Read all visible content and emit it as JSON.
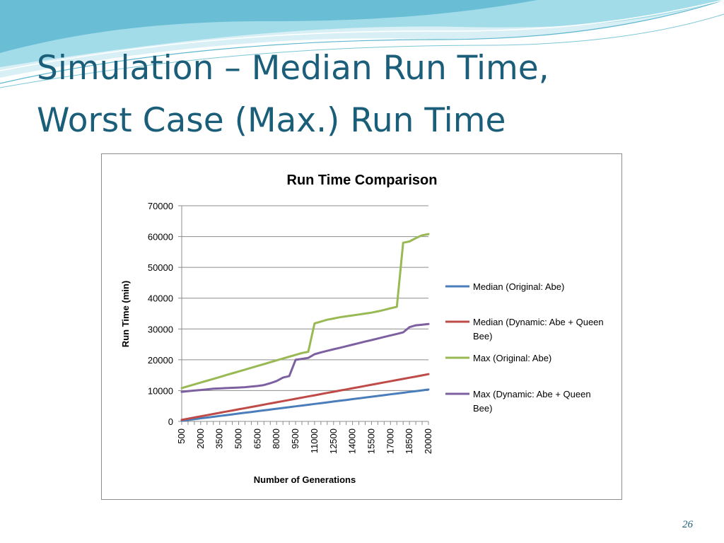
{
  "slide": {
    "title_line1": "Simulation – Median Run Time,",
    "title_line2": "Worst Case (Max.) Run Time",
    "page_number": "26"
  },
  "theme": {
    "title_color": "#1b5e79",
    "wave_light": "#bfe6ef",
    "wave_mid": "#7fd0e0",
    "wave_dark": "#3aa6c4"
  },
  "chart_data": {
    "type": "line",
    "title": "Run Time Comparison",
    "xlabel": "Number of Generations",
    "ylabel": "Run Time (min)",
    "x": [
      500,
      1000,
      1500,
      2000,
      2500,
      3000,
      3500,
      4000,
      4500,
      5000,
      5500,
      6000,
      6500,
      7000,
      7500,
      8000,
      8500,
      9000,
      9500,
      10000,
      10500,
      11000,
      11500,
      12000,
      12500,
      13000,
      13500,
      14000,
      14500,
      15000,
      15500,
      16000,
      16500,
      17000,
      17500,
      18000,
      18500,
      19000,
      19500,
      20000
    ],
    "x_tick_labels": [
      "500",
      "2000",
      "3500",
      "5000",
      "6500",
      "8000",
      "9500",
      "11000",
      "12500",
      "14000",
      "15500",
      "17000",
      "18500",
      "20000"
    ],
    "x_tick_values": [
      500,
      2000,
      3500,
      5000,
      6500,
      8000,
      9500,
      11000,
      12500,
      14000,
      15500,
      17000,
      18500,
      20000
    ],
    "ylim": [
      0,
      70000
    ],
    "y_ticks": [
      0,
      10000,
      20000,
      30000,
      40000,
      50000,
      60000,
      70000
    ],
    "y_tick_labels": [
      "0",
      "10000",
      "20000",
      "30000",
      "40000",
      "50000",
      "60000",
      "70000"
    ],
    "grid": "horizontal",
    "legend_position": "right",
    "series": [
      {
        "name": "Median (Original: Abe)",
        "color": "#4a7ebb",
        "values": [
          200,
          460,
          720,
          980,
          1240,
          1500,
          1760,
          2020,
          2280,
          2540,
          2800,
          3060,
          3320,
          3580,
          3840,
          4100,
          4360,
          4620,
          4880,
          5140,
          5400,
          5660,
          5920,
          6180,
          6440,
          6700,
          6960,
          7220,
          7480,
          7740,
          8000,
          8260,
          8520,
          8780,
          9040,
          9300,
          9560,
          9820,
          10080,
          10340
        ]
      },
      {
        "name": "Median (Dynamic: Abe + Queen Bee)",
        "color": "#be4b48",
        "values": [
          500,
          880,
          1260,
          1640,
          2020,
          2400,
          2780,
          3160,
          3540,
          3920,
          4300,
          4680,
          5060,
          5440,
          5820,
          6200,
          6580,
          6960,
          7340,
          7720,
          8100,
          8480,
          8860,
          9240,
          9620,
          10000,
          10380,
          10760,
          11140,
          11520,
          11900,
          12280,
          12660,
          13040,
          13420,
          13800,
          14180,
          14560,
          14940,
          15320
        ]
      },
      {
        "name": "Max (Original: Abe)",
        "color": "#98b954",
        "values": [
          10800,
          11400,
          12000,
          12600,
          13200,
          13800,
          14400,
          15000,
          15600,
          16200,
          16800,
          17400,
          18000,
          18600,
          19200,
          19800,
          20400,
          21000,
          21600,
          22200,
          22600,
          31800,
          32400,
          33000,
          33400,
          33800,
          34100,
          34400,
          34700,
          35000,
          35300,
          35700,
          36200,
          36700,
          37200,
          58000,
          58400,
          59500,
          60400,
          60800
        ]
      },
      {
        "name": "Max (Dynamic: Abe + Queen Bee)",
        "color": "#7d60a0",
        "values": [
          9600,
          9800,
          10000,
          10200,
          10400,
          10600,
          10700,
          10800,
          10900,
          11000,
          11100,
          11300,
          11500,
          11800,
          12400,
          13100,
          14200,
          14700,
          20000,
          20300,
          20600,
          21800,
          22400,
          22900,
          23400,
          23900,
          24400,
          24900,
          25400,
          25900,
          26400,
          26900,
          27400,
          27900,
          28400,
          28900,
          30600,
          31200,
          31400,
          31600
        ]
      }
    ]
  }
}
